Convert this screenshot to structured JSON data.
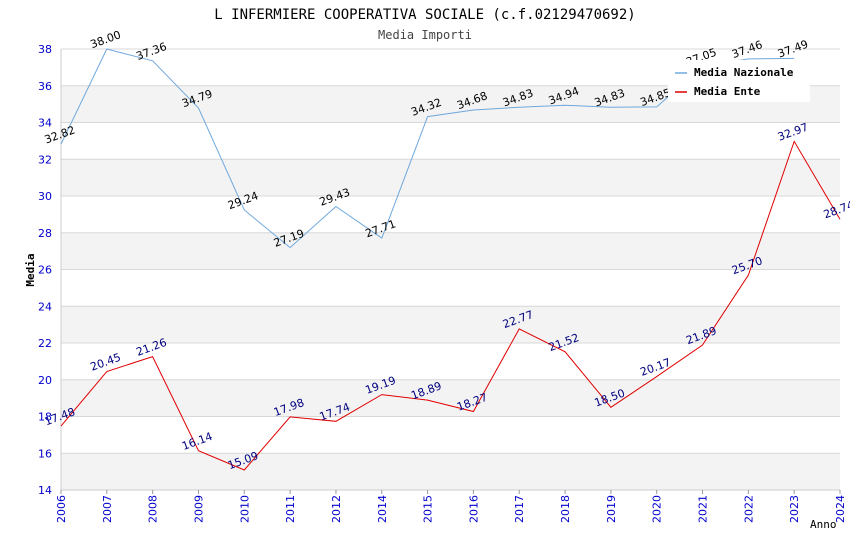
{
  "chart_data": {
    "type": "line",
    "title": "L INFERMIERE COOPERATIVA SOCIALE (c.f.02129470692)",
    "subtitle": "Media Importi",
    "xlabel": "Anno",
    "ylabel": "Media",
    "ylim": [
      14,
      38
    ],
    "ytick_step": 2,
    "grid": true,
    "legend_position": "top-right",
    "x": [
      "2006",
      "2007",
      "2008",
      "2009",
      "2010",
      "2011",
      "2012",
      "2014",
      "2015",
      "2016",
      "2017",
      "2018",
      "2019",
      "2020",
      "2021",
      "2022",
      "2023",
      "2024"
    ],
    "series": [
      {
        "name": "Media Nazionale",
        "color": "#6fa8dc",
        "label_color": "#000000",
        "values": [
          32.82,
          38.0,
          37.36,
          34.79,
          29.24,
          27.19,
          29.43,
          27.71,
          34.32,
          34.68,
          34.83,
          34.94,
          34.83,
          34.85,
          37.05,
          37.46,
          37.49,
          null
        ],
        "labels": [
          "32.82",
          "38.00",
          "37.36",
          "34.79",
          "29.24",
          "27.19",
          "29.43",
          "27.71",
          "34.32",
          "34.68",
          "34.83",
          "34.94",
          "34.83",
          "34.85",
          "37.05",
          "37.46",
          "37.49",
          ""
        ]
      },
      {
        "name": "Media Ente",
        "color": "#e00000",
        "label_color": "#000080",
        "values": [
          17.48,
          20.45,
          21.26,
          16.14,
          15.09,
          17.98,
          17.74,
          19.19,
          18.89,
          18.27,
          22.77,
          21.52,
          18.5,
          20.17,
          21.89,
          25.7,
          32.97,
          28.74
        ],
        "labels": [
          "17.48",
          "20.45",
          "21.26",
          "16.14",
          "15.09",
          "17.98",
          "17.74",
          "19.19",
          "18.89",
          "18.27",
          "22.77",
          "21.52",
          "18.50",
          "20.17",
          "21.89",
          "25.70",
          "32.97",
          "28.74"
        ]
      }
    ]
  }
}
